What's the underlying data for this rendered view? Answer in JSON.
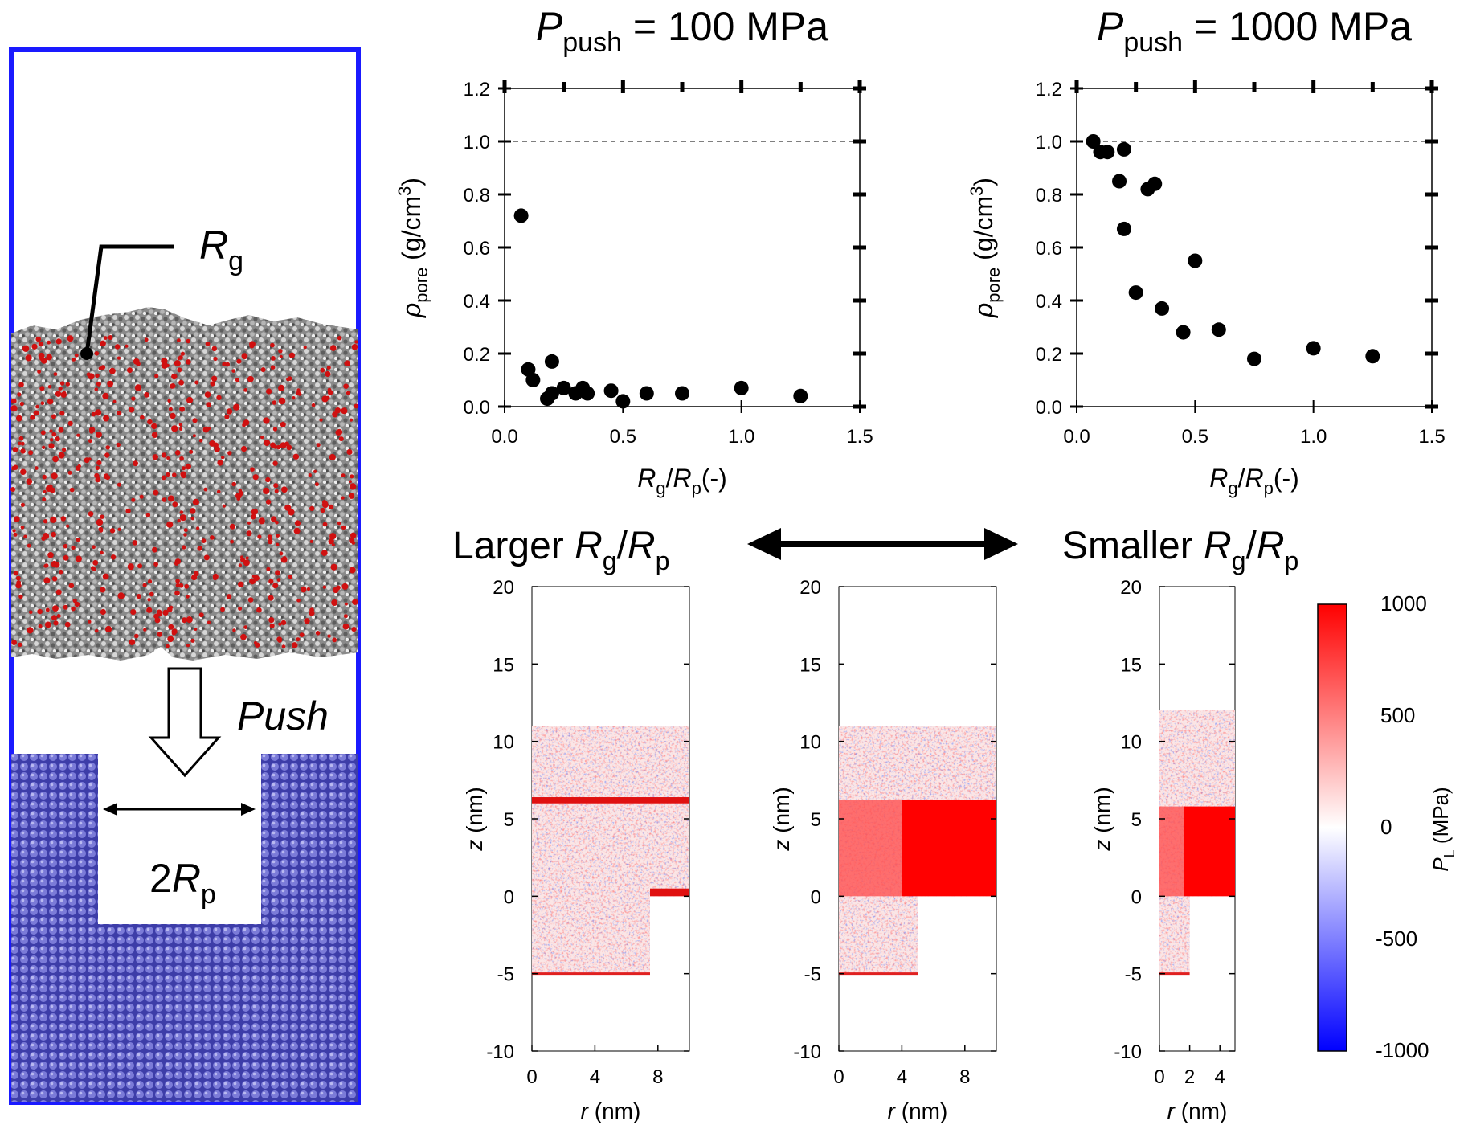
{
  "figure": {
    "left_panel": {
      "rg_label": "R",
      "rg_sub": "g",
      "push_label": "Push",
      "rp_prefix": "2",
      "rp_label": "R",
      "rp_sub": "p",
      "colors": {
        "frame": "#1a1aff",
        "polymer_base": "#8c8c8c",
        "oxygen": "#d01010",
        "wall": "#5a5acc"
      }
    },
    "arrow_labels": {
      "larger_text": "Larger ",
      "smaller_text": "Smaller ",
      "ratio_num": "R",
      "ratio_num_sub": "g",
      "ratio_den": "R",
      "ratio_den_sub": "p"
    },
    "colorbar": {
      "ticks": [
        "1000",
        "500",
        "0",
        "-500",
        "-1000"
      ],
      "label_main": "P",
      "label_sub": "L",
      "label_unit": " (MPa)",
      "colors": {
        "high": "#ff0000",
        "mid": "#ffffff",
        "low": "#0000ff"
      }
    },
    "maps": [
      {
        "name": "larger",
        "pore_radius_nm": 7.5,
        "r_ticks": [
          "0",
          "4",
          "8"
        ],
        "z_ticks": [
          "20",
          "15",
          "10",
          "5",
          "0",
          "-5",
          "-10"
        ],
        "xlabel_var": "r",
        "xlabel_unit": " (nm)",
        "ylabel_var": "z",
        "ylabel_unit": " (nm)"
      },
      {
        "name": "medium",
        "pore_radius_nm": 5,
        "r_ticks": [
          "0",
          "4",
          "8"
        ],
        "z_ticks": [
          "20",
          "15",
          "10",
          "5",
          "0",
          "-5",
          "-10"
        ],
        "xlabel_var": "r",
        "xlabel_unit": " (nm)",
        "ylabel_var": "z",
        "ylabel_unit": " (nm)"
      },
      {
        "name": "smaller",
        "pore_radius_nm": 2,
        "r_ticks": [
          "0",
          "2",
          "4"
        ],
        "z_ticks": [
          "20",
          "15",
          "10",
          "5",
          "0",
          "-5",
          "-10"
        ],
        "xlabel_var": "r",
        "xlabel_unit": " (nm)",
        "ylabel_var": "z",
        "ylabel_unit": " (nm)"
      }
    ]
  },
  "chart_data": [
    {
      "type": "scatter",
      "title_var": "P",
      "title_sub": "push",
      "title_rest": " = 100 MPa",
      "xlabel": "Rg/Rp(-)",
      "ylabel": "ρpore (g/cm3)",
      "xlim": [
        0,
        1.5
      ],
      "ylim": [
        0,
        1.2
      ],
      "x_ticks": [
        "0.0",
        "0.5",
        "1.0",
        "1.5"
      ],
      "y_ticks": [
        "0.0",
        "0.2",
        "0.4",
        "0.6",
        "0.8",
        "1.0",
        "1.2"
      ],
      "reference_line": 1.0,
      "points": [
        [
          0.07,
          0.72
        ],
        [
          0.1,
          0.14
        ],
        [
          0.12,
          0.1
        ],
        [
          0.18,
          0.03
        ],
        [
          0.2,
          0.05
        ],
        [
          0.2,
          0.17
        ],
        [
          0.25,
          0.07
        ],
        [
          0.3,
          0.05
        ],
        [
          0.33,
          0.07
        ],
        [
          0.35,
          0.05
        ],
        [
          0.45,
          0.06
        ],
        [
          0.5,
          0.02
        ],
        [
          0.6,
          0.05
        ],
        [
          0.75,
          0.05
        ],
        [
          1.0,
          0.07
        ],
        [
          1.25,
          0.04
        ]
      ]
    },
    {
      "type": "scatter",
      "title_var": "P",
      "title_sub": "push",
      "title_rest": " = 1000 MPa",
      "xlabel": "Rg/Rp(-)",
      "ylabel": "ρpore (g/cm3)",
      "xlim": [
        0,
        1.5
      ],
      "ylim": [
        0,
        1.2
      ],
      "x_ticks": [
        "0.0",
        "0.5",
        "1.0",
        "1.5"
      ],
      "y_ticks": [
        "0.0",
        "0.2",
        "0.4",
        "0.6",
        "0.8",
        "1.0",
        "1.2"
      ],
      "reference_line": 1.0,
      "points": [
        [
          0.07,
          1.0
        ],
        [
          0.1,
          0.96
        ],
        [
          0.13,
          0.96
        ],
        [
          0.18,
          0.85
        ],
        [
          0.2,
          0.97
        ],
        [
          0.2,
          0.67
        ],
        [
          0.25,
          0.43
        ],
        [
          0.3,
          0.82
        ],
        [
          0.33,
          0.84
        ],
        [
          0.36,
          0.37
        ],
        [
          0.45,
          0.28
        ],
        [
          0.5,
          0.55
        ],
        [
          0.6,
          0.29
        ],
        [
          0.75,
          0.18
        ],
        [
          1.0,
          0.22
        ],
        [
          1.25,
          0.19
        ]
      ]
    }
  ]
}
